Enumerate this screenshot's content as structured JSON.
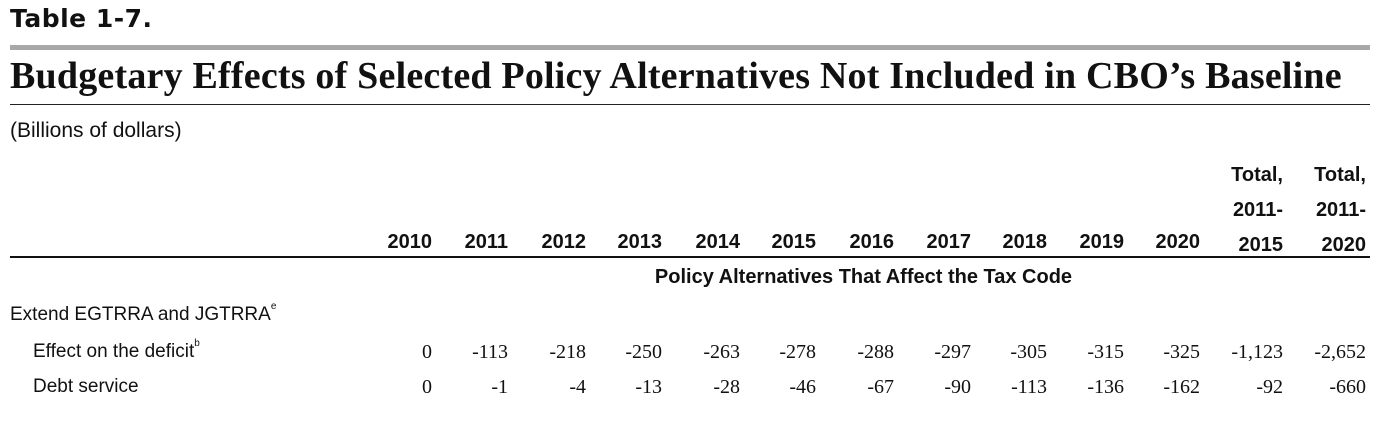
{
  "table_label": "Table 1-7.",
  "title": "Budgetary Effects of Selected Policy Alternatives Not Included in CBO’s Baseline",
  "units": "(Billions of dollars)",
  "columns": [
    "2010",
    "2011",
    "2012",
    "2013",
    "2014",
    "2015",
    "2016",
    "2017",
    "2018",
    "2019",
    "2020"
  ],
  "total_cols": [
    {
      "line1": "Total,",
      "line2": "2011-",
      "line3": "2015"
    },
    {
      "line1": "Total,",
      "line2": "2011-",
      "line3": "2020"
    }
  ],
  "section_heading": "Policy Alternatives That Affect the Tax Code",
  "group_label": "Extend EGTRRA and JGTRRA",
  "group_note": "e",
  "rows": [
    {
      "label": "Effect on the deficit",
      "note": "b",
      "values": [
        "0",
        "-113",
        "-218",
        "-250",
        "-263",
        "-278",
        "-288",
        "-297",
        "-305",
        "-315",
        "-325",
        "-1,123",
        "-2,652"
      ]
    },
    {
      "label": "Debt service",
      "note": "",
      "values": [
        "0",
        "-1",
        "-4",
        "-13",
        "-28",
        "-46",
        "-67",
        "-90",
        "-113",
        "-136",
        "-162",
        "-92",
        "-660"
      ]
    }
  ]
}
